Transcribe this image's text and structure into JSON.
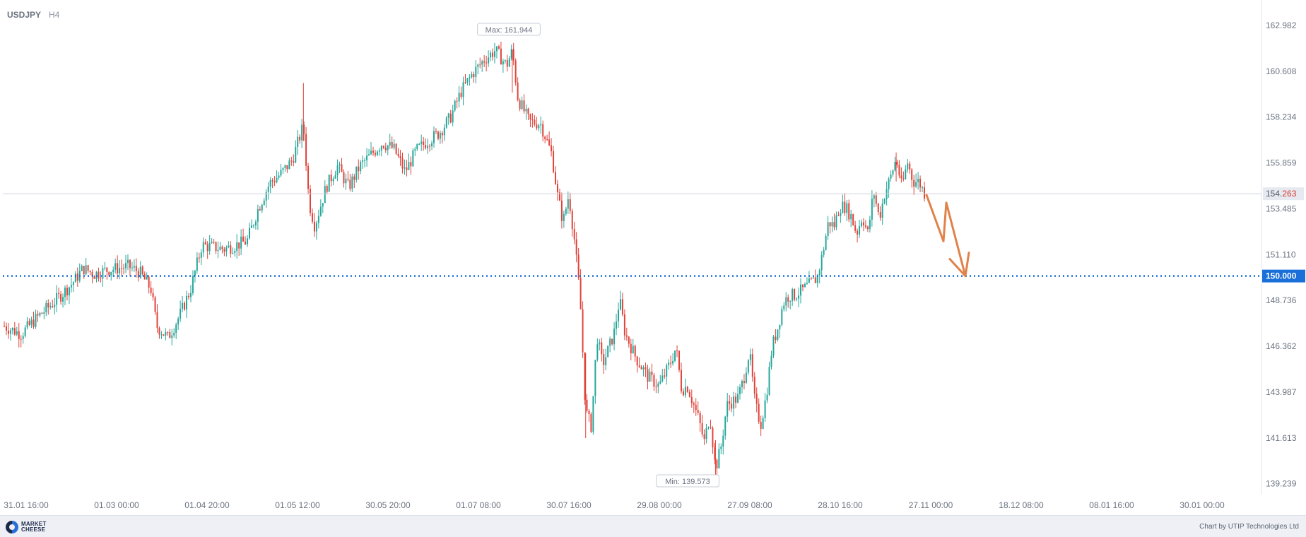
{
  "header": {
    "symbol": "USDJPY",
    "timeframe": "H4"
  },
  "chart_data": {
    "type": "candlestick",
    "symbol": "USDJPY",
    "timeframe": "H4",
    "y_ticks": [
      162.982,
      160.608,
      158.234,
      155.859,
      153.485,
      151.11,
      148.736,
      146.362,
      143.987,
      141.613,
      139.239
    ],
    "y_tick_labels": [
      "162.982",
      "160.608",
      "158.234",
      "155.859",
      "153.485",
      "151.110",
      "148.736",
      "146.362",
      "143.987",
      "141.613",
      "139.239"
    ],
    "x_tick_labels": [
      "31.01 16:00",
      "01.03 00:00",
      "01.04 20:00",
      "01.05 12:00",
      "30.05 20:00",
      "01.07 08:00",
      "30.07 16:00",
      "29.08 00:00",
      "27.09 08:00",
      "28.10 16:00",
      "27.11 00:00",
      "18.12 08:00",
      "08.01 16:00",
      "30.01 00:00"
    ],
    "ylim": [
      138.2,
      164.3
    ],
    "price_path": [
      [
        0,
        147.4
      ],
      [
        3,
        147.0
      ],
      [
        6,
        147.9
      ],
      [
        9,
        148.7
      ],
      [
        12,
        149.6
      ],
      [
        14,
        150.4
      ],
      [
        16,
        150.1
      ],
      [
        18,
        150.3
      ],
      [
        20,
        150.4
      ],
      [
        22,
        150.5
      ],
      [
        24,
        150.2
      ],
      [
        26,
        149.3
      ],
      [
        27,
        147.4
      ],
      [
        29,
        146.8
      ],
      [
        31,
        147.9
      ],
      [
        33,
        149.3
      ],
      [
        35,
        151.6
      ],
      [
        37,
        151.5
      ],
      [
        39,
        151.4
      ],
      [
        41,
        151.6
      ],
      [
        43,
        151.8
      ],
      [
        45,
        153.5
      ],
      [
        47,
        154.8
      ],
      [
        49,
        155.3
      ],
      [
        51,
        156.0
      ],
      [
        53,
        157.8
      ],
      [
        54,
        153.8
      ],
      [
        55,
        152.6
      ],
      [
        57,
        154.6
      ],
      [
        59,
        155.7
      ],
      [
        61,
        154.6
      ],
      [
        63,
        155.7
      ],
      [
        65,
        156.3
      ],
      [
        67,
        156.9
      ],
      [
        69,
        156.6
      ],
      [
        71,
        155.4
      ],
      [
        73,
        156.5
      ],
      [
        75,
        157.0
      ],
      [
        77,
        157.4
      ],
      [
        79,
        158.2
      ],
      [
        81,
        159.6
      ],
      [
        83,
        160.5
      ],
      [
        85,
        161.2
      ],
      [
        87,
        161.7
      ],
      [
        89,
        160.9
      ],
      [
        90,
        161.7
      ],
      [
        91,
        159.2
      ],
      [
        93,
        158.0
      ],
      [
        95,
        157.9
      ],
      [
        97,
        156.3
      ],
      [
        98,
        154.2
      ],
      [
        99,
        152.8
      ],
      [
        100,
        154.2
      ],
      [
        101,
        151.9
      ],
      [
        102,
        148.9
      ],
      [
        103,
        143.0
      ],
      [
        104,
        142.2
      ],
      [
        105,
        146.9
      ],
      [
        106,
        145.4
      ],
      [
        107,
        146.2
      ],
      [
        108,
        147.0
      ],
      [
        109,
        148.8
      ],
      [
        110,
        147.0
      ],
      [
        112,
        145.7
      ],
      [
        114,
        144.8
      ],
      [
        116,
        144.3
      ],
      [
        118,
        145.5
      ],
      [
        119,
        146.3
      ],
      [
        120,
        144.1
      ],
      [
        121,
        144.3
      ],
      [
        123,
        142.6
      ],
      [
        124,
        141.4
      ],
      [
        125,
        142.8
      ],
      [
        126,
        140.0
      ],
      [
        127,
        141.2
      ],
      [
        128,
        143.3
      ],
      [
        130,
        143.7
      ],
      [
        131,
        144.7
      ],
      [
        132,
        146.1
      ],
      [
        133,
        143.4
      ],
      [
        134,
        142.3
      ],
      [
        135,
        143.8
      ],
      [
        136,
        146.3
      ],
      [
        137,
        147.3
      ],
      [
        138,
        148.6
      ],
      [
        139,
        149.0
      ],
      [
        140,
        149.0
      ],
      [
        142,
        149.4
      ],
      [
        144,
        149.9
      ],
      [
        145,
        151.2
      ],
      [
        146,
        152.8
      ],
      [
        147,
        152.6
      ],
      [
        148,
        153.6
      ],
      [
        149,
        153.6
      ],
      [
        150,
        153.1
      ],
      [
        151,
        152.2
      ],
      [
        152,
        153.1
      ],
      [
        153,
        152.2
      ],
      [
        154,
        154.4
      ],
      [
        155,
        153.0
      ],
      [
        156,
        154.3
      ],
      [
        157,
        155.1
      ],
      [
        158,
        156.1
      ],
      [
        159,
        154.6
      ],
      [
        160,
        155.9
      ],
      [
        161,
        154.9
      ],
      [
        162,
        154.9
      ],
      [
        163,
        154.3
      ]
    ],
    "current_price": {
      "int": "154.",
      "frac": "263"
    },
    "target_level": "150.000",
    "max_label": "Max: 161.944",
    "min_label": "Min: 139.573",
    "colors": {
      "up": "#26a69a",
      "down": "#e0433a",
      "target": "#1a6fd8",
      "arrow": "#e0824a",
      "current_line": "#d0d4dc"
    }
  },
  "footer": {
    "logo_text": "MARKET\nCHEESE",
    "credit": "Chart by UTIP Technologies Ltd"
  }
}
